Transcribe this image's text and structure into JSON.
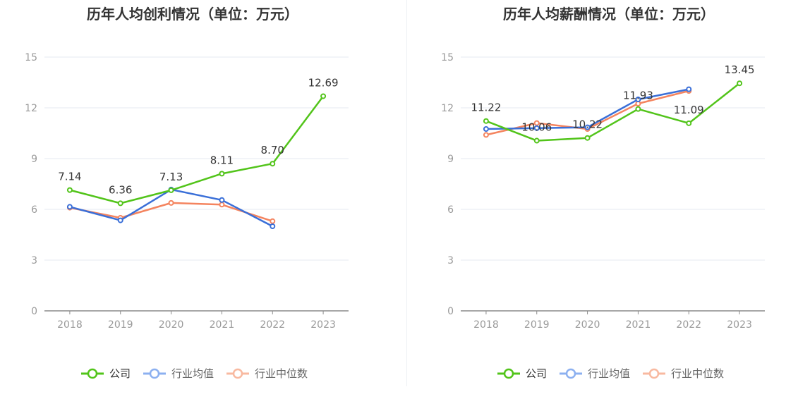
{
  "chart_data": [
    {
      "type": "line",
      "title": "历年人均创利情况（单位：万元）",
      "categories": [
        "2018",
        "2019",
        "2020",
        "2021",
        "2022",
        "2023"
      ],
      "ylim": [
        0,
        15
      ],
      "yticks": [
        0,
        3,
        6,
        9,
        12,
        15
      ],
      "grid": true,
      "legend_position": "bottom",
      "series": [
        {
          "name": "公司",
          "color": "#52c41a",
          "values": [
            7.14,
            6.36,
            7.13,
            8.11,
            8.7,
            12.69
          ],
          "labels": [
            "7.14",
            "6.36",
            "7.13",
            "8.11",
            "8.70",
            "12.69"
          ]
        },
        {
          "name": "行业均值",
          "color": "#3a6fd8",
          "values": [
            6.15,
            5.35,
            7.17,
            6.55,
            5.0,
            null
          ]
        },
        {
          "name": "行业中位数",
          "color": "#f4845f",
          "values": [
            6.1,
            5.5,
            6.38,
            6.28,
            5.3,
            null
          ]
        }
      ]
    },
    {
      "type": "line",
      "title": "历年人均薪酬情况（单位：万元）",
      "categories": [
        "2018",
        "2019",
        "2020",
        "2021",
        "2022",
        "2023"
      ],
      "ylim": [
        0,
        15
      ],
      "yticks": [
        0,
        3,
        6,
        9,
        12,
        15
      ],
      "grid": true,
      "legend_position": "bottom",
      "series": [
        {
          "name": "公司",
          "color": "#52c41a",
          "values": [
            11.22,
            10.06,
            10.22,
            11.93,
            11.09,
            13.45
          ],
          "labels": [
            "11.22",
            "10.06",
            "10.22",
            "11.93",
            "11.09",
            "13.45"
          ]
        },
        {
          "name": "行业均值",
          "color": "#3a6fd8",
          "values": [
            10.75,
            10.8,
            10.85,
            12.5,
            13.1,
            null
          ]
        },
        {
          "name": "行业中位数",
          "color": "#f4845f",
          "values": [
            10.4,
            11.1,
            10.75,
            12.25,
            13.0,
            null
          ]
        }
      ]
    }
  ],
  "colors": {
    "legend_company": "#52c41a",
    "legend_avg": "#8cb0f0",
    "legend_median": "#f8b9a0",
    "axis_text": "#999999",
    "grid": "#e6e9f2",
    "title": "#333333"
  }
}
